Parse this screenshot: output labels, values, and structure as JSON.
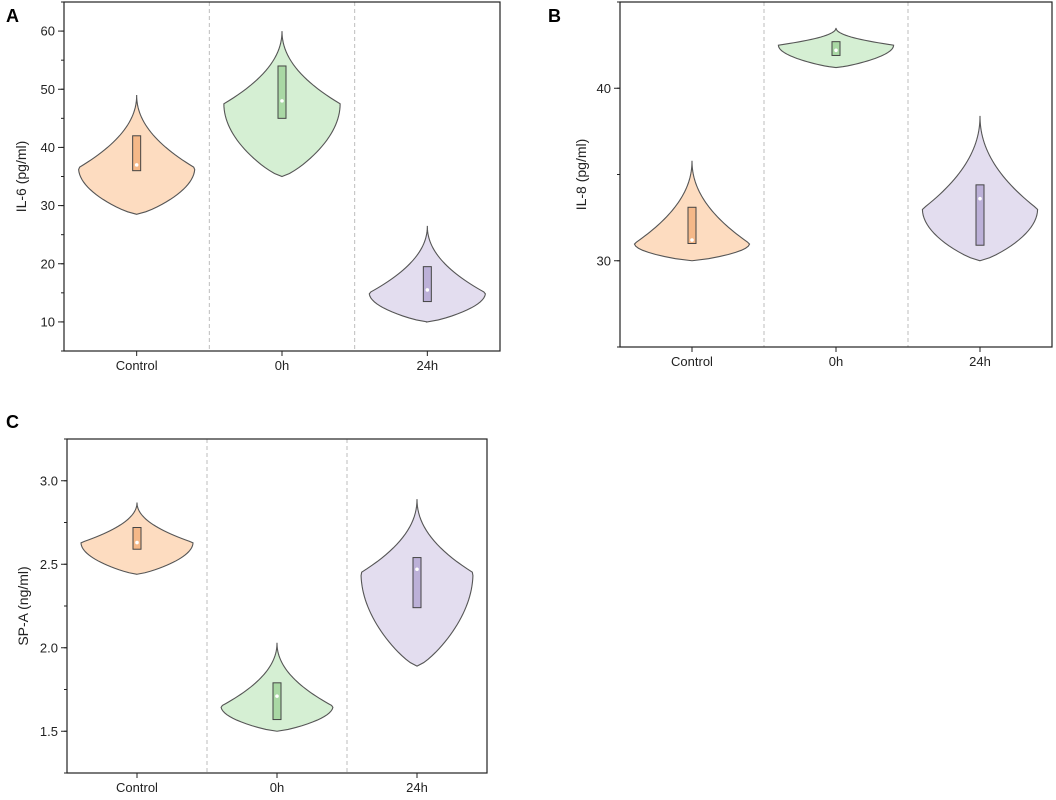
{
  "chart_data": [
    {
      "panel": "A",
      "type": "violin",
      "ylabel": "IL-6 (pg/ml)",
      "categories": [
        "Control",
        "0h",
        "24h"
      ],
      "ylim": [
        5,
        65
      ],
      "yticks": [
        10,
        20,
        30,
        40,
        50,
        60
      ],
      "violins": [
        {
          "name": "Control",
          "min": 28.5,
          "max": 49,
          "mode": 36.5,
          "q1": 36,
          "q3": 42,
          "median": 37,
          "fill": "#fddcc0",
          "box": "#f5b888"
        },
        {
          "name": "0h",
          "min": 35,
          "max": 60,
          "mode": 47.5,
          "q1": 45,
          "q3": 54,
          "median": 48,
          "fill": "#d5efd3",
          "box": "#a9d8a4"
        },
        {
          "name": "24h",
          "min": 10,
          "max": 26.5,
          "mode": 15,
          "q1": 13.5,
          "q3": 19.5,
          "median": 15.5,
          "fill": "#e3ddef",
          "box": "#bcb0d8"
        }
      ]
    },
    {
      "panel": "B",
      "type": "violin",
      "ylabel": "IL-8 (pg/ml)",
      "categories": [
        "Control",
        "0h",
        "24h"
      ],
      "ylim": [
        25,
        45
      ],
      "yticks": [
        30,
        40
      ],
      "violins": [
        {
          "name": "Control",
          "min": 30,
          "max": 35.8,
          "mode": 31,
          "q1": 31,
          "q3": 33.1,
          "median": 31.2,
          "fill": "#fddcc0",
          "box": "#f5b888"
        },
        {
          "name": "0h",
          "min": 41.2,
          "max": 43.5,
          "mode": 42.5,
          "q1": 41.9,
          "q3": 42.7,
          "median": 42.2,
          "fill": "#d5efd3",
          "box": "#a9d8a4"
        },
        {
          "name": "24h",
          "min": 30,
          "max": 38.4,
          "mode": 33,
          "q1": 30.9,
          "q3": 34.4,
          "median": 33.6,
          "fill": "#e3ddef",
          "box": "#bcb0d8"
        }
      ]
    },
    {
      "panel": "C",
      "type": "violin",
      "ylabel": "SP-A (ng/ml)",
      "categories": [
        "Control",
        "0h",
        "24h"
      ],
      "ylim": [
        1.25,
        3.25
      ],
      "yticks": [
        1.5,
        2.0,
        2.5,
        3.0
      ],
      "yticklabels": [
        "1.5",
        "2.0",
        "2.5",
        "3.0"
      ],
      "violins": [
        {
          "name": "Control",
          "min": 2.44,
          "max": 2.87,
          "mode": 2.63,
          "q1": 2.59,
          "q3": 2.72,
          "median": 2.63,
          "fill": "#fddcc0",
          "box": "#f5b888"
        },
        {
          "name": "0h",
          "min": 1.5,
          "max": 2.03,
          "mode": 1.65,
          "q1": 1.57,
          "q3": 1.79,
          "median": 1.71,
          "fill": "#d5efd3",
          "box": "#a9d8a4"
        },
        {
          "name": "24h",
          "min": 1.89,
          "max": 2.89,
          "mode": 2.45,
          "q1": 2.24,
          "q3": 2.54,
          "median": 2.47,
          "fill": "#e3ddef",
          "box": "#bcb0d8"
        }
      ]
    }
  ]
}
